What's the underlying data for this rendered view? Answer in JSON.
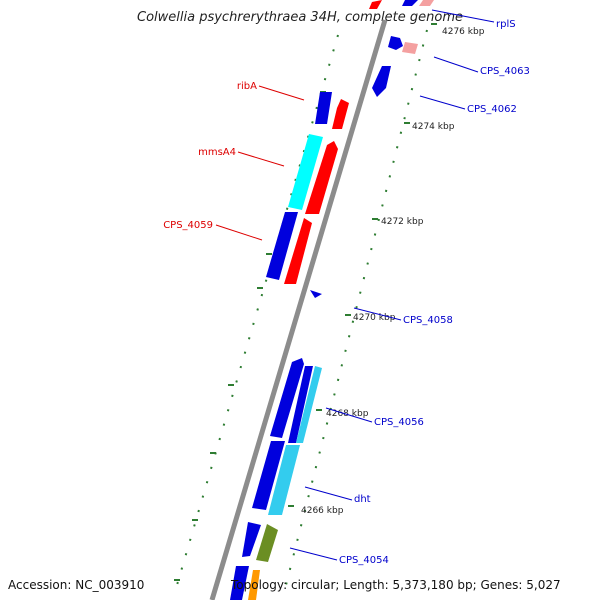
{
  "title": "Colwellia psychrerythraea 34H, complete genome",
  "accession": "Accession: NC_003910",
  "topology": "Topology: circular; Length: 5,373,180 bp; Genes: 5,027",
  "ticks": [
    "4276 kbp",
    "4274 kbp",
    "4272 kbp",
    "4270 kbp",
    "4268 kbp",
    "4266 kbp"
  ],
  "gene_labels_left": [
    "ribA",
    "mmsA4",
    "CPS_4059"
  ],
  "gene_labels_right": [
    "rplS",
    "CPS_4063",
    "CPS_4062",
    "CPS_4058",
    "CPS_4056",
    "dht",
    "CPS_4054"
  ],
  "colors": {
    "backbone": "#8c8c8c",
    "cds_blue": "#0000dd",
    "cds_red": "#ff0000",
    "cds_pink": "#f4a0a0",
    "cds_cyan": "#00ccff",
    "cds_lightblue": "#33ccee",
    "cds_olive": "#6b8e23",
    "cds_orange": "#ff9900",
    "tick_green": "#2e7d32",
    "label_red": "#dd0000",
    "label_blue": "#0000cc"
  }
}
